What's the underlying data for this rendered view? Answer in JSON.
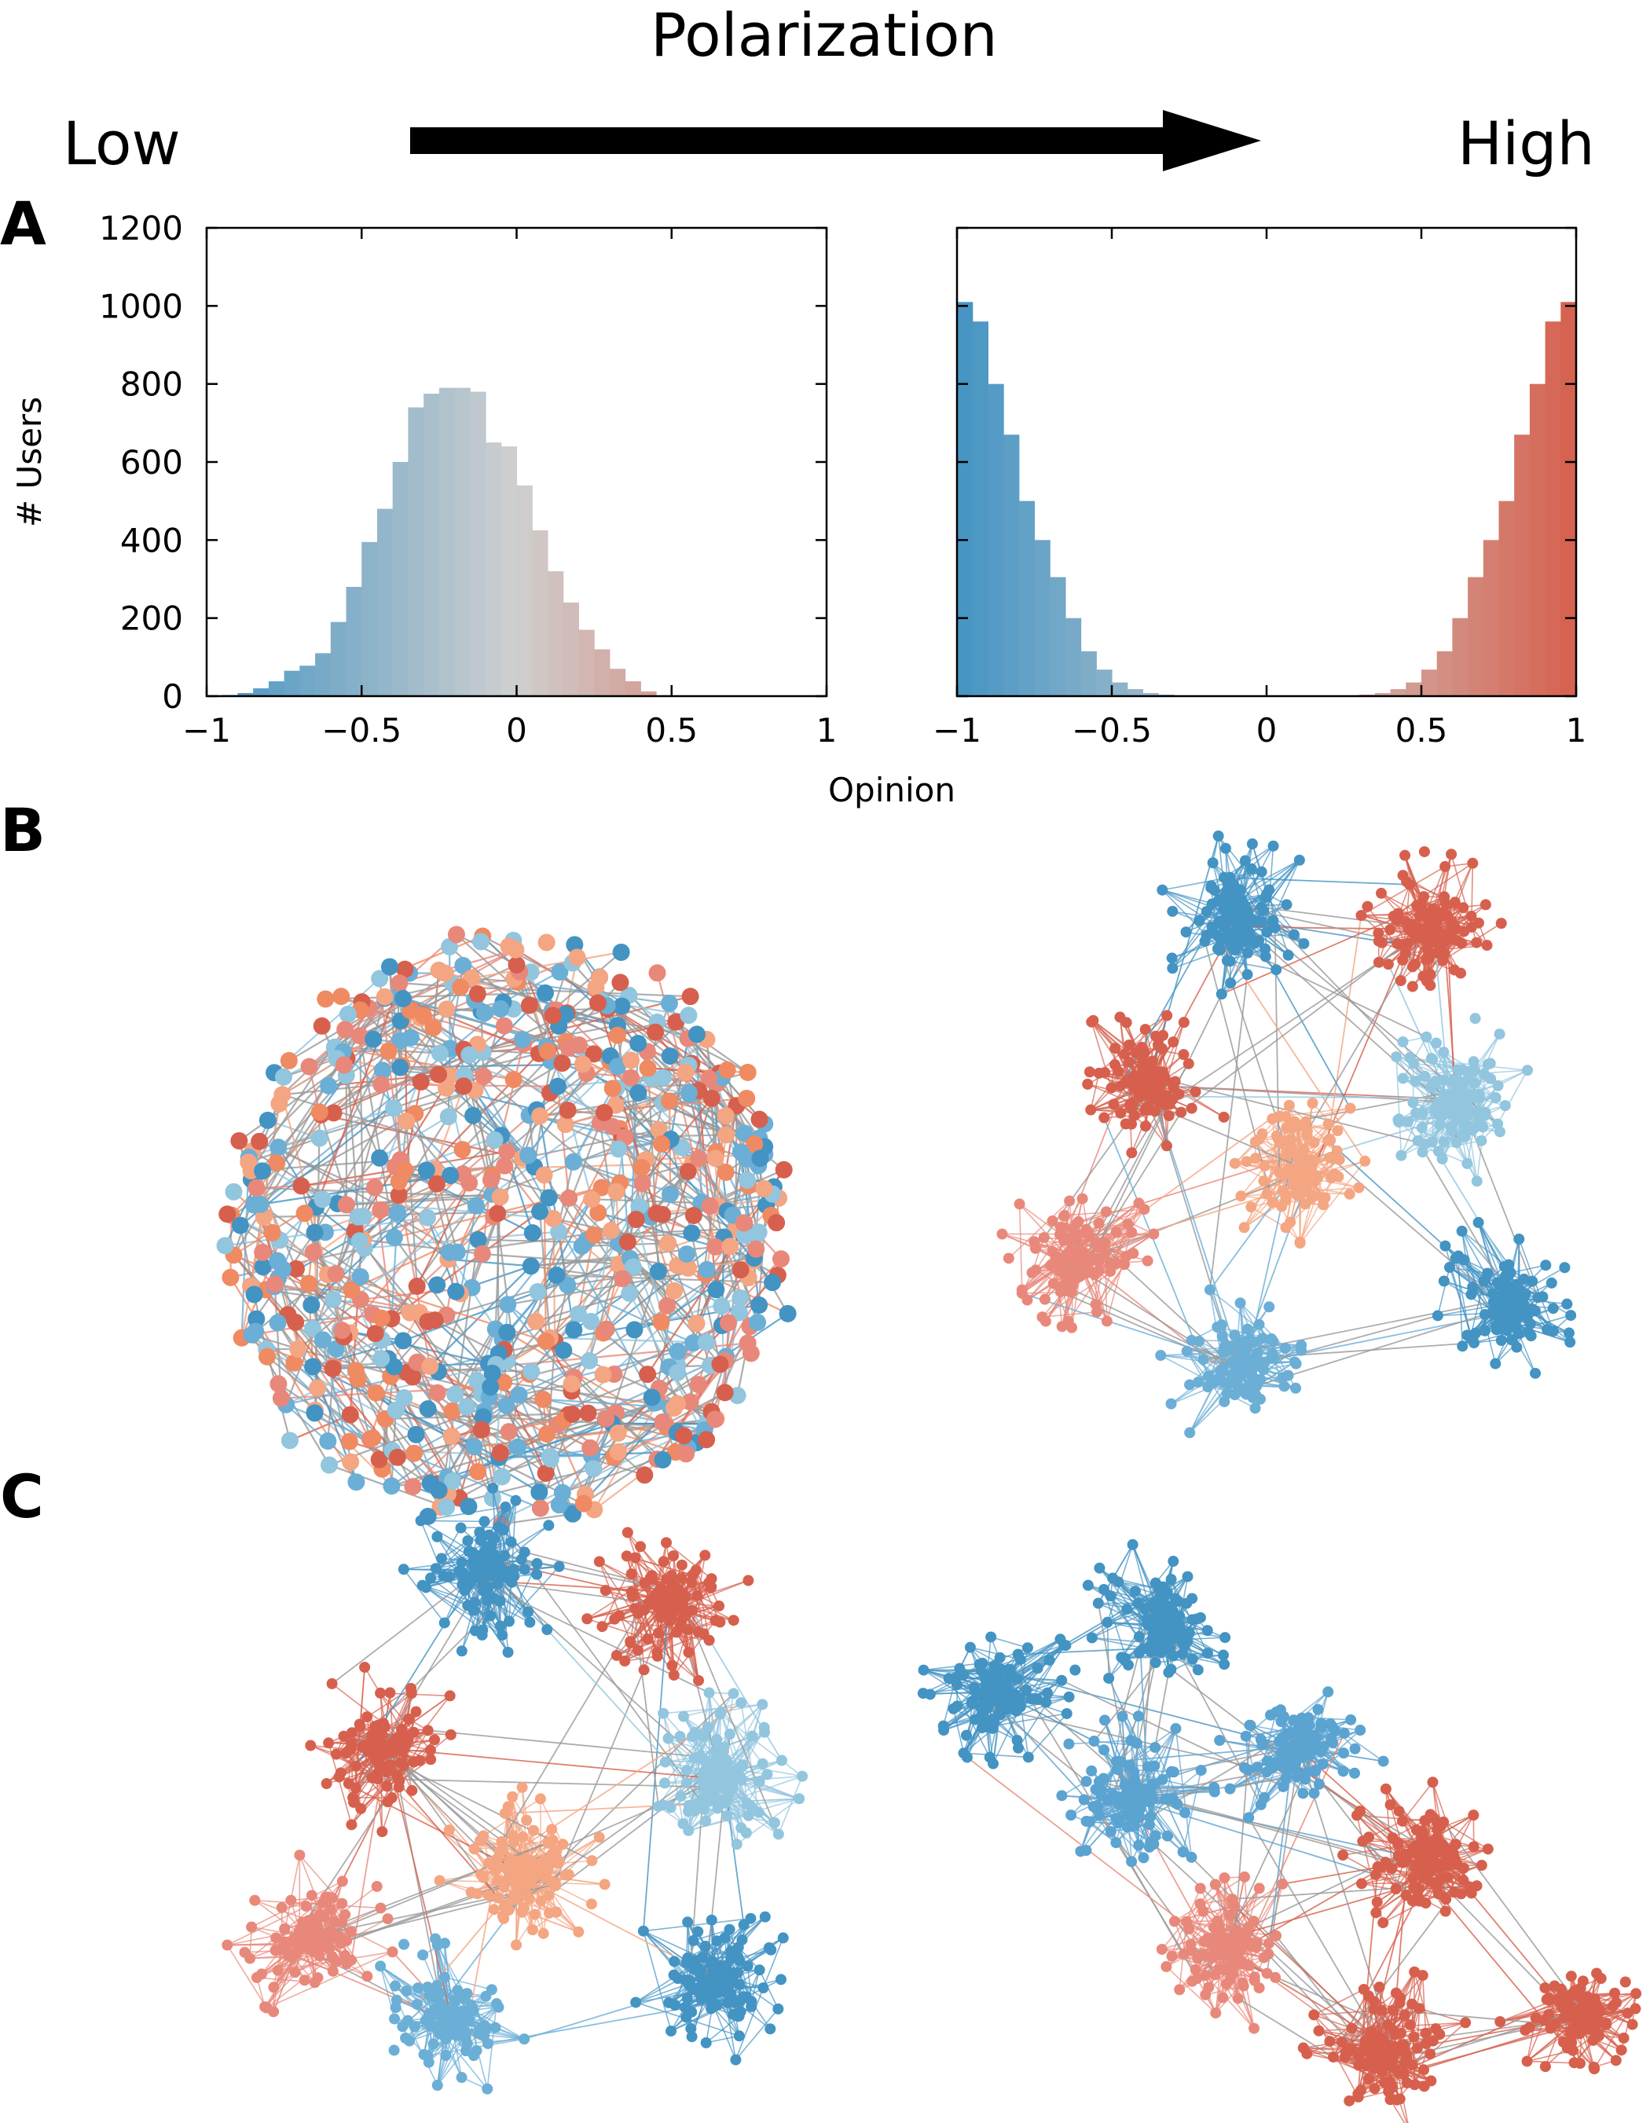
{
  "header": {
    "title": "Polarization",
    "low_label": "Low",
    "high_label": "High"
  },
  "panels": {
    "a": "A",
    "b": "B",
    "c": "C"
  },
  "colors": {
    "blue": "#4393c3",
    "light_blue": "#92c5de",
    "pale_blue": "#a9cfe3",
    "red": "#d6604d",
    "light_red": "#f4a582",
    "salmon": "#e8887a",
    "neutral": "#cfcfcf",
    "edge_gray": "#999999"
  },
  "chart_data": [
    {
      "type": "bar",
      "subtype": "histogram",
      "ylabel": "# Users",
      "xlabel": "Opinion",
      "xlim": [
        -1,
        1
      ],
      "ylim": [
        0,
        1200
      ],
      "x_ticks": [
        "−1",
        "−0.5",
        "0",
        "0.5",
        "1"
      ],
      "y_ticks": [
        "0",
        "200",
        "400",
        "600",
        "800",
        "1000",
        "1200"
      ],
      "bin_width": 0.05,
      "bin_start": -1,
      "values": [
        0,
        3,
        8,
        20,
        38,
        65,
        78,
        110,
        190,
        280,
        395,
        480,
        600,
        740,
        775,
        790,
        790,
        780,
        650,
        640,
        540,
        425,
        320,
        240,
        170,
        120,
        70,
        38,
        12,
        0,
        0,
        0,
        0,
        0,
        0,
        0,
        0,
        0,
        0,
        0
      ],
      "color_map": [
        "#4393c3",
        "#cfcfcf",
        "#d6604d"
      ]
    },
    {
      "type": "bar",
      "subtype": "histogram",
      "ylabel": "",
      "xlabel": "Opinion",
      "xlim": [
        -1,
        1
      ],
      "ylim": [
        0,
        1200
      ],
      "x_ticks": [
        "−1",
        "−0.5",
        "0",
        "0.5",
        "1"
      ],
      "y_ticks": [],
      "bin_width": 0.05,
      "bin_start": -1,
      "values": [
        1010,
        960,
        800,
        670,
        500,
        400,
        305,
        200,
        115,
        68,
        35,
        18,
        8,
        4,
        2,
        1,
        0,
        0,
        0,
        0,
        0,
        0,
        0,
        0,
        1,
        2,
        4,
        8,
        18,
        35,
        68,
        115,
        200,
        305,
        400,
        500,
        670,
        800,
        960,
        1010
      ],
      "color_map": [
        "#4393c3",
        "#cfcfcf",
        "#d6604d"
      ]
    }
  ],
  "networks": [
    {
      "id": "b-left",
      "layout": "mixed",
      "clusters": []
    },
    {
      "id": "b-right",
      "layout": "clustered",
      "clusters": [
        {
          "color": "#4393c3"
        },
        {
          "color": "#d6604d"
        },
        {
          "color": "#d6604d"
        },
        {
          "color": "#92c5de"
        },
        {
          "color": "#f4a582"
        },
        {
          "color": "#e8887a"
        },
        {
          "color": "#4393c3"
        },
        {
          "color": "#6baed6"
        }
      ]
    },
    {
      "id": "c-left",
      "layout": "clustered",
      "clusters": [
        {
          "color": "#4393c3"
        },
        {
          "color": "#d6604d"
        },
        {
          "color": "#d6604d"
        },
        {
          "color": "#92c5de"
        },
        {
          "color": "#f4a582"
        },
        {
          "color": "#e8887a"
        },
        {
          "color": "#4393c3"
        },
        {
          "color": "#6baed6"
        }
      ]
    },
    {
      "id": "c-right",
      "layout": "clustered",
      "clusters": [
        {
          "color": "#4393c3"
        },
        {
          "color": "#4393c3"
        },
        {
          "color": "#5ba3d0"
        },
        {
          "color": "#5ba3d0"
        },
        {
          "color": "#d6604d"
        },
        {
          "color": "#e8887a"
        },
        {
          "color": "#d6604d"
        },
        {
          "color": "#d6604d"
        }
      ]
    }
  ]
}
